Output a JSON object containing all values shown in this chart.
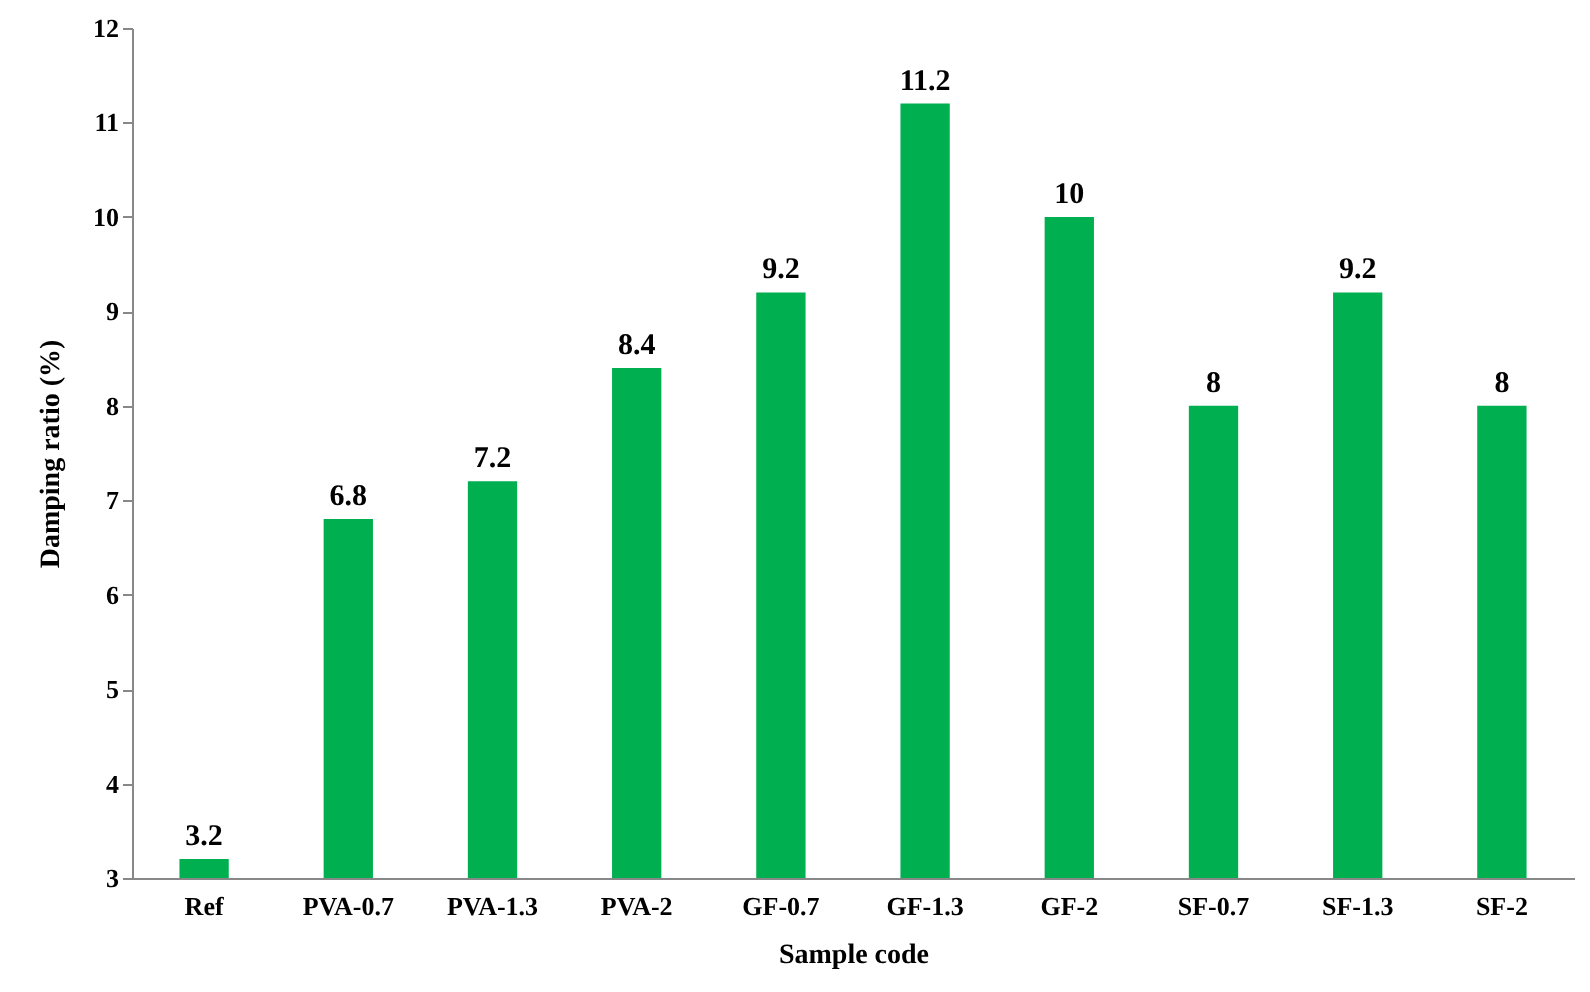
{
  "chart_data": {
    "type": "bar",
    "xlabel": "Sample code",
    "ylabel": "Damping ratio (%)",
    "categories": [
      "Ref",
      "PVA-0.7",
      "PVA-1.3",
      "PVA-2",
      "GF-0.7",
      "GF-1.3",
      "GF-2",
      "SF-0.7",
      "SF-1.3",
      "SF-2"
    ],
    "values": [
      3.2,
      6.8,
      7.2,
      8.4,
      9.2,
      11.2,
      10,
      8,
      9.2,
      8
    ],
    "color": "#00b050",
    "ylim": [
      3,
      12
    ],
    "yticks": [
      3,
      4,
      5,
      6,
      7,
      8,
      9,
      10,
      11,
      12
    ],
    "data_labels": true
  }
}
